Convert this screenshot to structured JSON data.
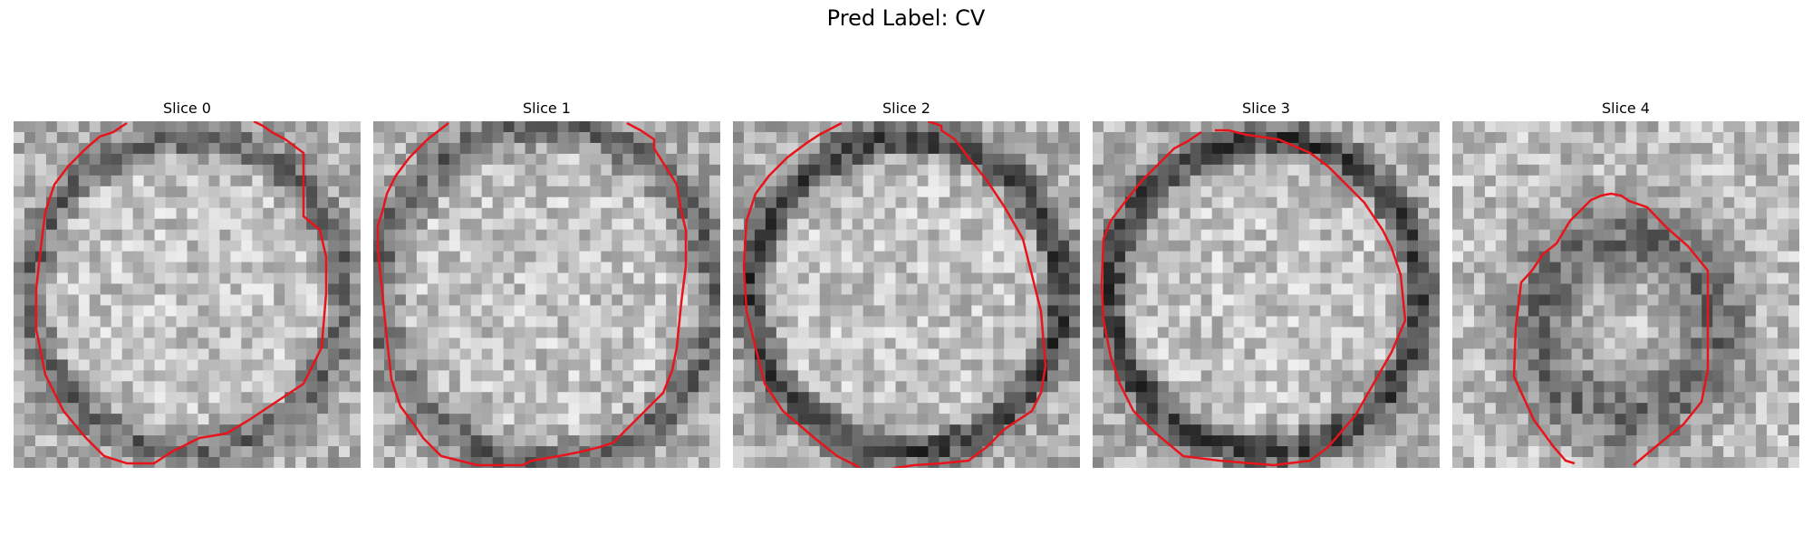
{
  "figure": {
    "suptitle": "Pred Label: CV",
    "contour_color": "#e8141b",
    "panels": [
      {
        "title": "Slice 0",
        "seed": 11,
        "profile": "ring"
      },
      {
        "title": "Slice 1",
        "seed": 23,
        "profile": "ring-wide"
      },
      {
        "title": "Slice 2",
        "seed": 37,
        "profile": "ring-strong"
      },
      {
        "title": "Slice 3",
        "seed": 41,
        "profile": "ring-strong"
      },
      {
        "title": "Slice 4",
        "seed": 59,
        "profile": "blob"
      }
    ]
  }
}
